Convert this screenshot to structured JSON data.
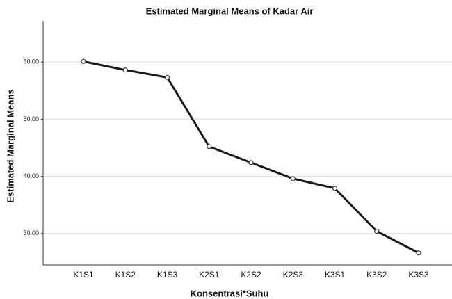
{
  "chart_data": {
    "type": "line",
    "title": "Estimated Marginal Means of Kadar Air",
    "xlabel": "Konsentrasi*Suhu",
    "ylabel": "Estimated Marginal Means",
    "categories": [
      "K1S1",
      "K1S2",
      "K1S3",
      "K2S1",
      "K2S2",
      "K2S3",
      "K3S1",
      "K3S2",
      "K3S3"
    ],
    "values": [
      60.1,
      58.6,
      57.3,
      45.2,
      42.4,
      39.6,
      37.9,
      30.4,
      26.6
    ],
    "color": "#1a1a1a",
    "ylim": [
      24.5,
      67.2
    ],
    "yticks": [
      {
        "value": 30,
        "label": "30,00"
      },
      {
        "value": 40,
        "label": "40,00"
      },
      {
        "value": 50,
        "label": "50,00"
      },
      {
        "value": 60,
        "label": "60,00"
      }
    ],
    "grid": true
  }
}
